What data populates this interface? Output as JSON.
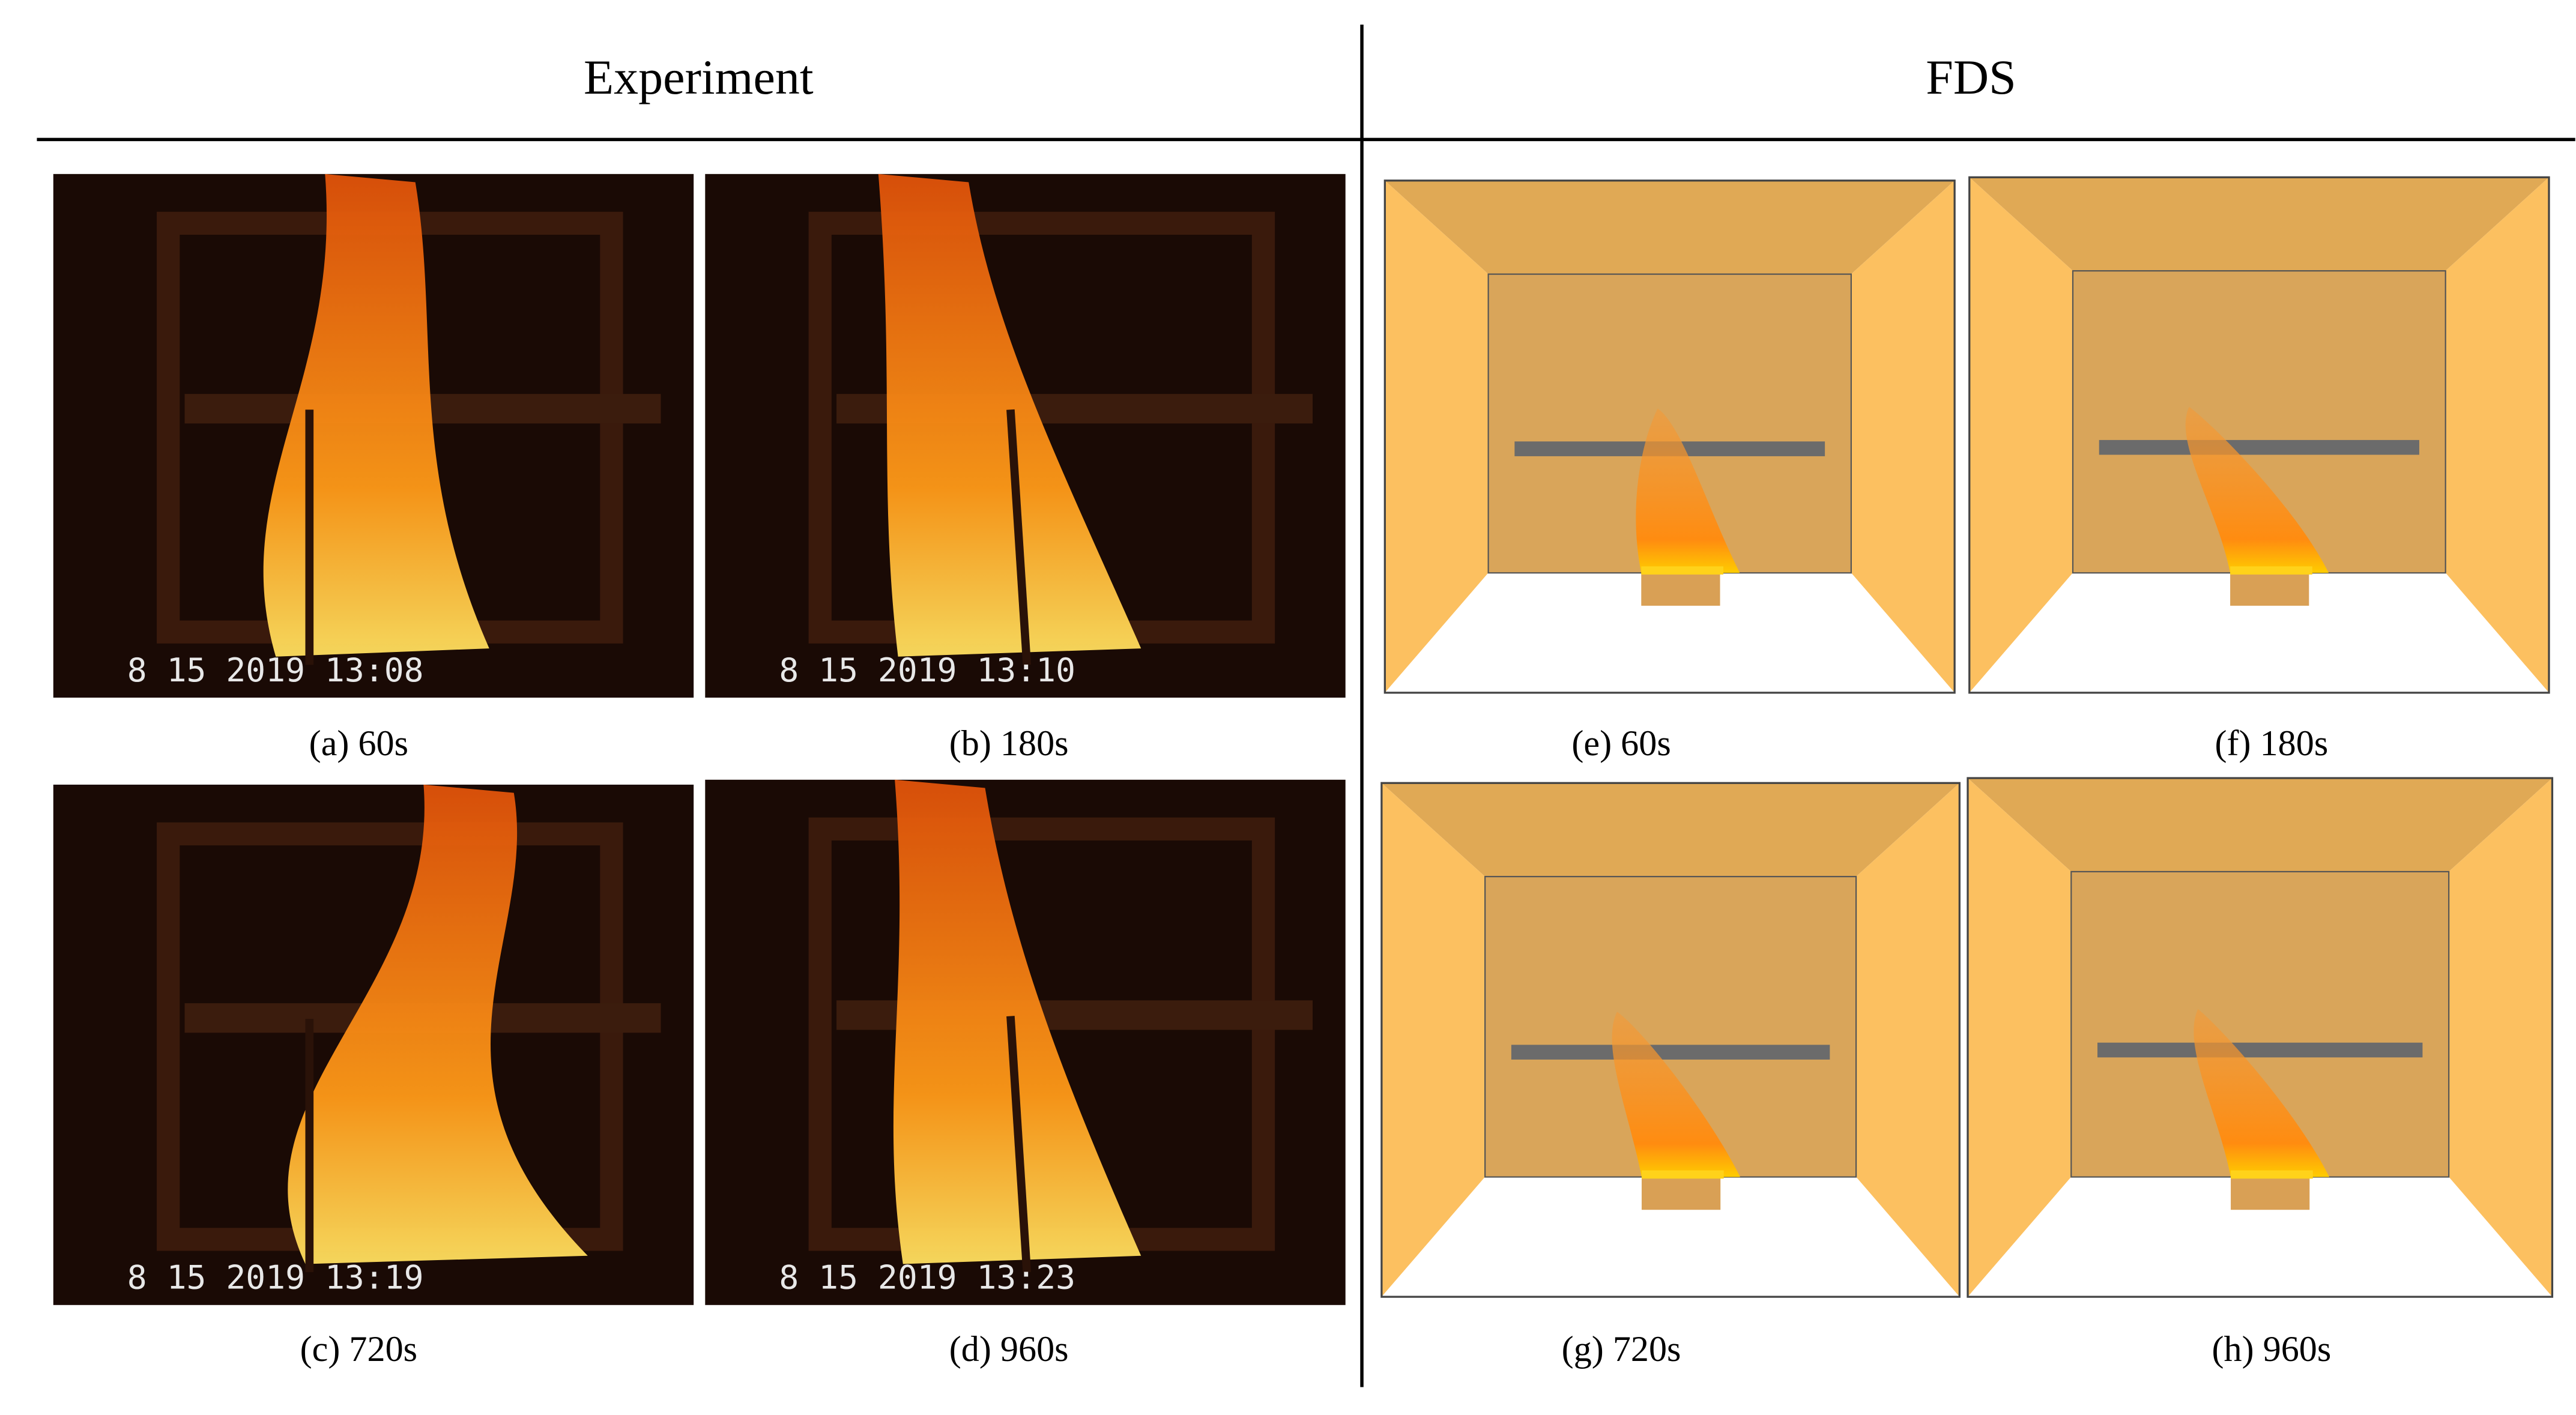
{
  "header": {
    "left": "Experiment",
    "right": "FDS"
  },
  "experiment": [
    {
      "caption": "(a) 60s",
      "timestamp": "8 15 2019  13:08"
    },
    {
      "caption": "(b) 180s",
      "timestamp": "8 15 2019  13:10"
    },
    {
      "caption": "(c) 720s",
      "timestamp": "8 15 2019  13:19"
    },
    {
      "caption": "(d) 960s",
      "timestamp": "8 15 2019  13:23"
    }
  ],
  "fds": [
    {
      "caption": "(e) 60s"
    },
    {
      "caption": "(f) 180s"
    },
    {
      "caption": "(g) 720s"
    },
    {
      "caption": "(h) 960s"
    }
  ]
}
